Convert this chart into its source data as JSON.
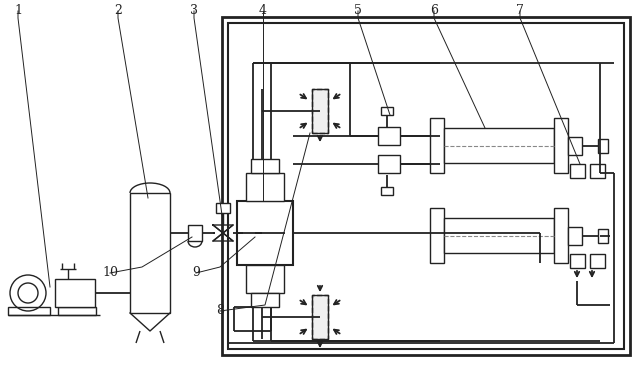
{
  "bg_color": "#ffffff",
  "line_color": "#222222",
  "figsize": [
    6.4,
    3.73
  ],
  "dpi": 100
}
